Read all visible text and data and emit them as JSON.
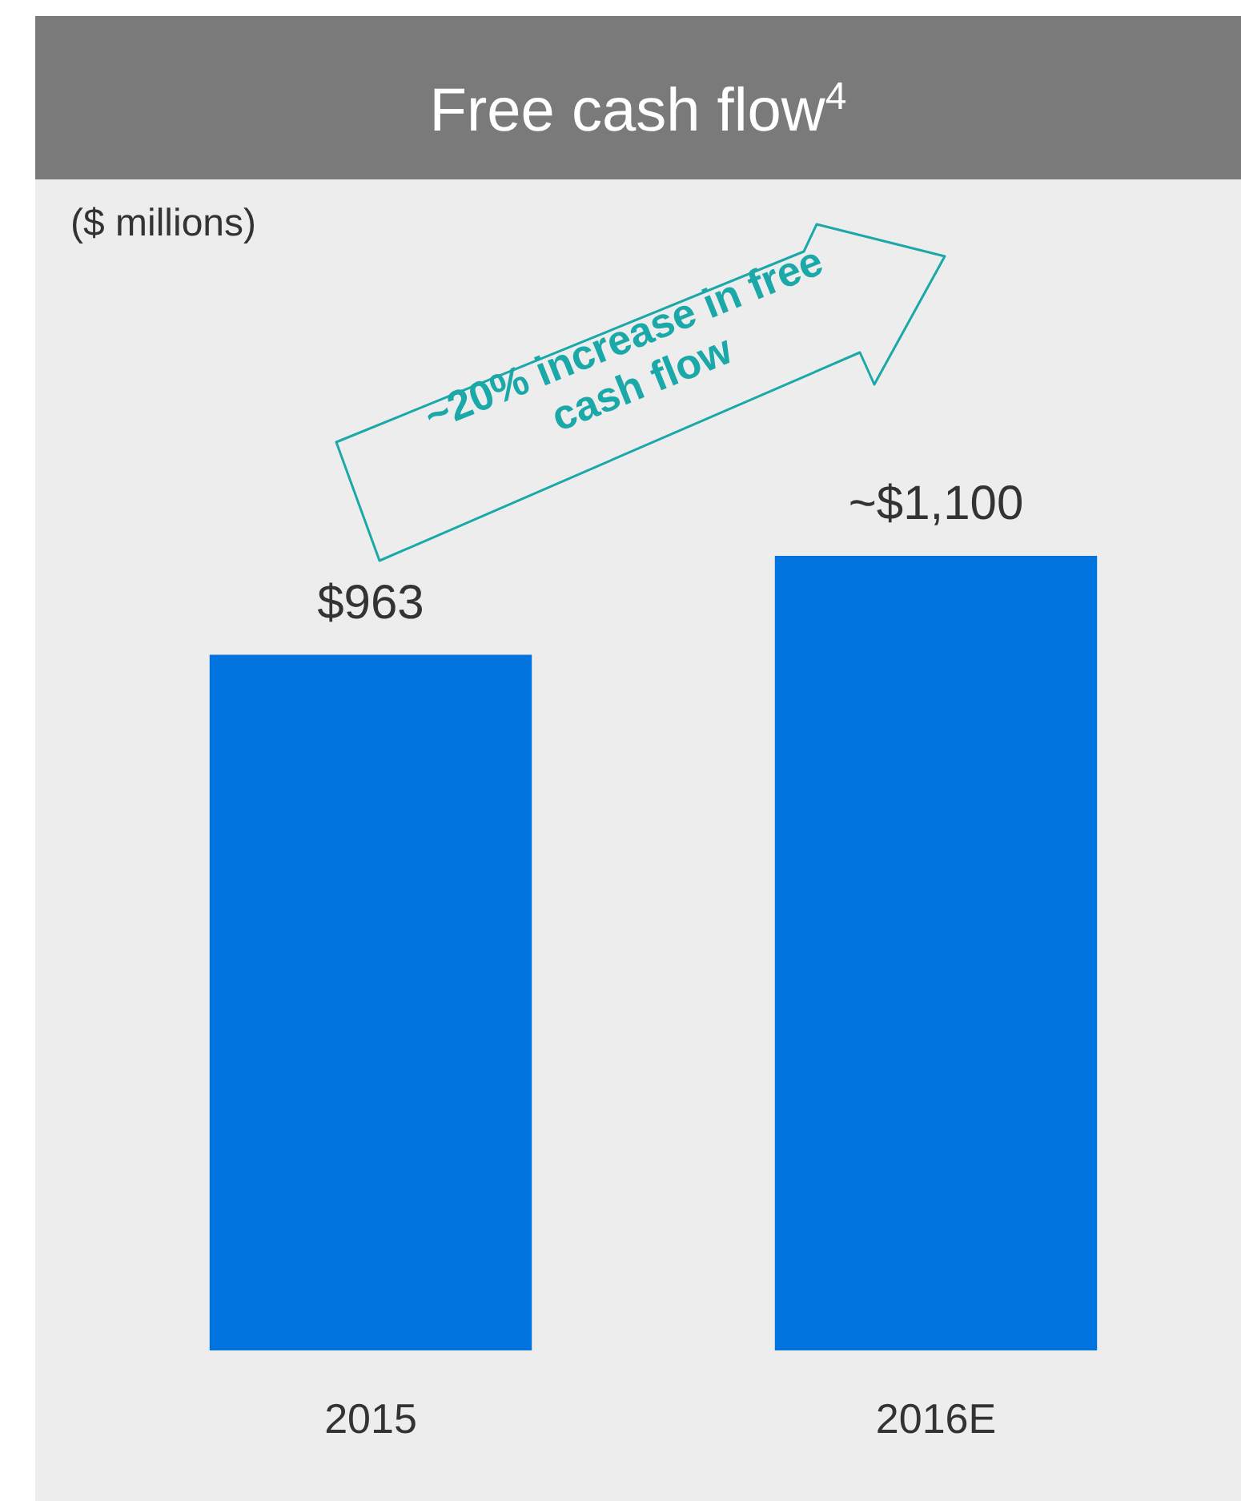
{
  "chart_data": {
    "type": "bar",
    "title": "Free cash flow$^{4}$",
    "subtitle": "($ millions)",
    "categories": [
      "2015",
      "2016E"
    ],
    "values": [
      963,
      1100
    ],
    "value_labels": [
      "$963",
      "~$1,100"
    ],
    "color": "#0073de",
    "annotations": [
      "~20% increase in free cash flow"
    ]
  }
}
